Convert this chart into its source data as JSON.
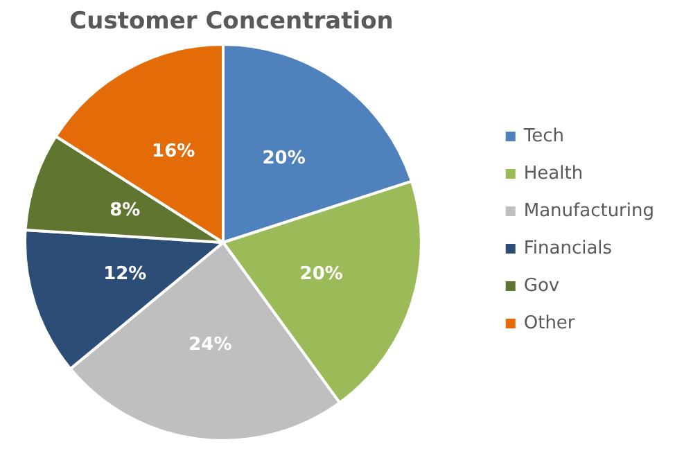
{
  "chart_data": {
    "type": "pie",
    "title": "Customer Concentration",
    "categories": [
      "Tech",
      "Health",
      "Manufacturing",
      "Financials",
      "Gov",
      "Other"
    ],
    "values": [
      20,
      20,
      24,
      12,
      8,
      16
    ],
    "value_labels": [
      "20%",
      "20%",
      "24%",
      "12%",
      "8%",
      "16%"
    ],
    "colors": [
      "#4f81bd",
      "#9bbb59",
      "#bfbfbf",
      "#2c4d75",
      "#5f7530",
      "#e36c09"
    ],
    "legend": "right"
  }
}
